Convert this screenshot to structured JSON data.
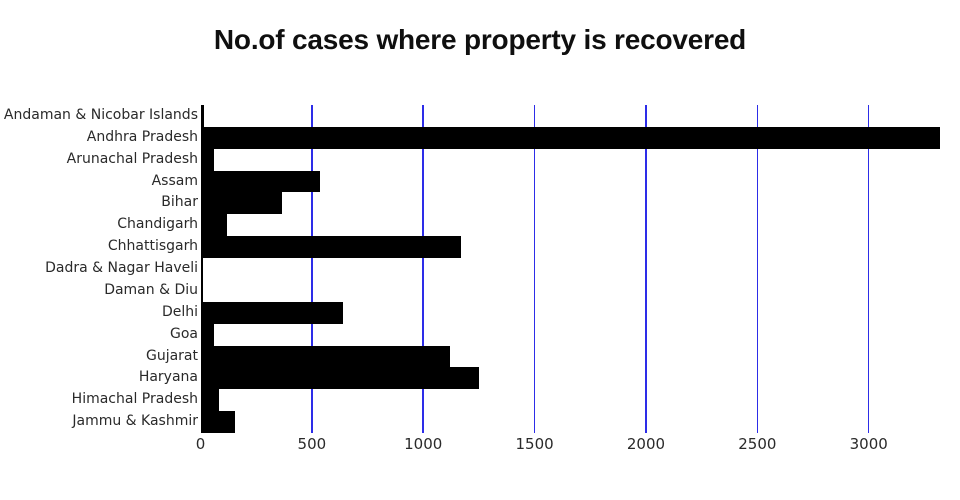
{
  "title": "No.of cases where property is recovered",
  "chart_data": {
    "type": "bar",
    "orientation": "horizontal",
    "title": "No.of cases where property is recovered",
    "xlabel": "",
    "ylabel": "",
    "categories": [
      "Andaman & Nicobar Islands",
      "Andhra Pradesh",
      "Arunachal Pradesh",
      "Assam",
      "Bihar",
      "Chandigarh",
      "Chhattisgarh",
      "Dadra & Nagar Haveli",
      "Daman & Diu",
      "Delhi",
      "Goa",
      "Gujarat",
      "Haryana",
      "Himachal Pradesh",
      "Jammu & Kashmir"
    ],
    "values": [
      16,
      3320,
      61,
      538,
      364,
      117,
      1169,
      5,
      1,
      640,
      61,
      1120,
      1252,
      85,
      157
    ],
    "xlim": [
      0,
      3320
    ],
    "xticks": [
      0,
      500,
      1000,
      1500,
      2000,
      2500,
      3000
    ],
    "grid": true,
    "legend": "none",
    "colors": {
      "bar": "#000000",
      "gridline": "#2d2de8",
      "axis_line": "#000000",
      "tick_text": "#2a2a2a",
      "label_text": "#2a2a2a",
      "title_text": "#0f0f0f",
      "background": "#ffffff"
    }
  }
}
